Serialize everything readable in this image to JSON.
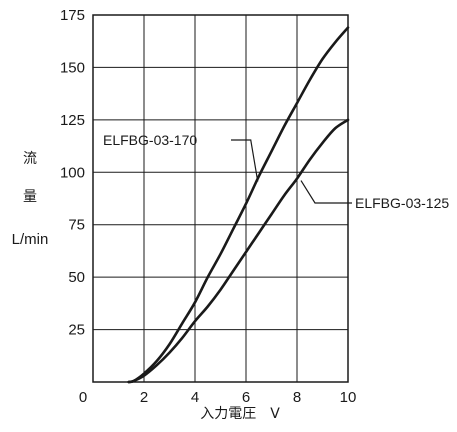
{
  "chart_data": {
    "type": "line",
    "xlabel": "入力電圧　V",
    "ylabel_lines": [
      "流",
      "量",
      "L/min"
    ],
    "xlim": [
      0,
      10
    ],
    "ylim": [
      0,
      175
    ],
    "x_ticks": [
      "0",
      "2",
      "4",
      "6",
      "8",
      "10"
    ],
    "y_ticks": [
      "25",
      "50",
      "75",
      "100",
      "125",
      "150",
      "175"
    ],
    "grid": true,
    "series": [
      {
        "name": "ELFBG-03-170",
        "points": [
          [
            1.4,
            0
          ],
          [
            1.6,
            0.5
          ],
          [
            2,
            4
          ],
          [
            2.5,
            10
          ],
          [
            3,
            18
          ],
          [
            3.5,
            28
          ],
          [
            4,
            38
          ],
          [
            4.5,
            50
          ],
          [
            5,
            61
          ],
          [
            5.5,
            73
          ],
          [
            6,
            85
          ],
          [
            6.5,
            98
          ],
          [
            7,
            110
          ],
          [
            7.5,
            122
          ],
          [
            8,
            133
          ],
          [
            8.5,
            144
          ],
          [
            9,
            154
          ],
          [
            9.5,
            162
          ],
          [
            10,
            169
          ]
        ]
      },
      {
        "name": "ELFBG-03-125",
        "points": [
          [
            1.4,
            0
          ],
          [
            1.6,
            0.5
          ],
          [
            2,
            3
          ],
          [
            2.5,
            8
          ],
          [
            3,
            14
          ],
          [
            3.5,
            21
          ],
          [
            4,
            29
          ],
          [
            4.5,
            36
          ],
          [
            5,
            44
          ],
          [
            5.5,
            53
          ],
          [
            6,
            62
          ],
          [
            6.5,
            71
          ],
          [
            7,
            80
          ],
          [
            7.5,
            89
          ],
          [
            8,
            97
          ],
          [
            8.5,
            106
          ],
          [
            9,
            114
          ],
          [
            9.5,
            121
          ],
          [
            10,
            125
          ]
        ]
      }
    ],
    "annotations": [
      {
        "text": "ELFBG-03-170",
        "series": "ELFBG-03-170",
        "at_x": 6.5
      },
      {
        "text": "ELFBG-03-125",
        "series": "ELFBG-03-125",
        "at_x": 8.0
      }
    ]
  }
}
